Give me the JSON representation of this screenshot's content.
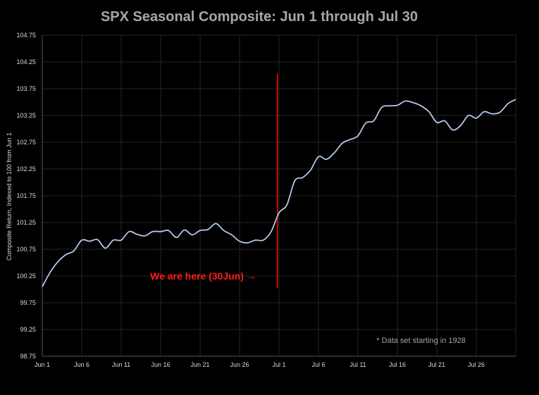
{
  "chart_data": {
    "type": "line",
    "title": "SPX Seasonal Composite: Jun 1 through Jul 30",
    "ylabel": "Composite Return, Indexed to 100 from Jun 1",
    "xlabel": "",
    "ylim": [
      98.75,
      104.75
    ],
    "yticks": [
      "98.75",
      "99.25",
      "99.75",
      "100.25",
      "100.75",
      "101.25",
      "101.75",
      "102.25",
      "102.75",
      "103.25",
      "103.75",
      "104.25",
      "104.75"
    ],
    "xlim": [
      1,
      61
    ],
    "xticks": [
      {
        "x": 1,
        "label": "Jun 1"
      },
      {
        "x": 6,
        "label": "Jun 6"
      },
      {
        "x": 11,
        "label": "Jun 11"
      },
      {
        "x": 16,
        "label": "Jun 16"
      },
      {
        "x": 21,
        "label": "Jun 21"
      },
      {
        "x": 26,
        "label": "Jun 26"
      },
      {
        "x": 31,
        "label": "Jul 1"
      },
      {
        "x": 36,
        "label": "Jul 6"
      },
      {
        "x": 41,
        "label": "Jul 11"
      },
      {
        "x": 46,
        "label": "Jul 16"
      },
      {
        "x": 51,
        "label": "Jul 21"
      },
      {
        "x": 56,
        "label": "Jul 26"
      }
    ],
    "grid": true,
    "series": [
      {
        "color": "#b4c7e7",
        "x": [
          1,
          2,
          3,
          4,
          5,
          6,
          7,
          8,
          9,
          10,
          11,
          12,
          13,
          14,
          15,
          16,
          17,
          18,
          19,
          20,
          21,
          22,
          23,
          24,
          25,
          26,
          27,
          28,
          29,
          30,
          31,
          32,
          33,
          34,
          35,
          36,
          37,
          38,
          39,
          40,
          41,
          42,
          43,
          44,
          45,
          46,
          47,
          48,
          49,
          50,
          51,
          52,
          53,
          54,
          55,
          56,
          57,
          58,
          59,
          60,
          61
        ],
        "values": [
          100.05,
          100.32,
          100.52,
          100.65,
          100.72,
          100.92,
          100.9,
          100.93,
          100.77,
          100.92,
          100.92,
          101.08,
          101.03,
          101.0,
          101.08,
          101.08,
          101.1,
          100.97,
          101.11,
          101.02,
          101.1,
          101.12,
          101.23,
          101.1,
          101.02,
          100.9,
          100.87,
          100.92,
          100.92,
          101.08,
          101.43,
          101.58,
          102.03,
          102.09,
          102.23,
          102.48,
          102.43,
          102.55,
          102.73,
          102.8,
          102.87,
          103.11,
          103.15,
          103.4,
          103.43,
          103.44,
          103.52,
          103.49,
          103.43,
          103.32,
          103.12,
          103.15,
          102.98,
          103.06,
          103.25,
          103.2,
          103.32,
          103.28,
          103.31,
          103.47,
          103.55
        ]
      }
    ],
    "marker_line": {
      "x": 30.8,
      "color": "#ff0000",
      "y_from": 100.03,
      "y_to": 104.03
    },
    "annotations": [
      {
        "text": "We are here (30Jun) →",
        "x": 21.4,
        "y": 100.25
      },
      {
        "text": "* Data set starting in 1928",
        "x": 49.0,
        "y": 99.05
      }
    ]
  }
}
